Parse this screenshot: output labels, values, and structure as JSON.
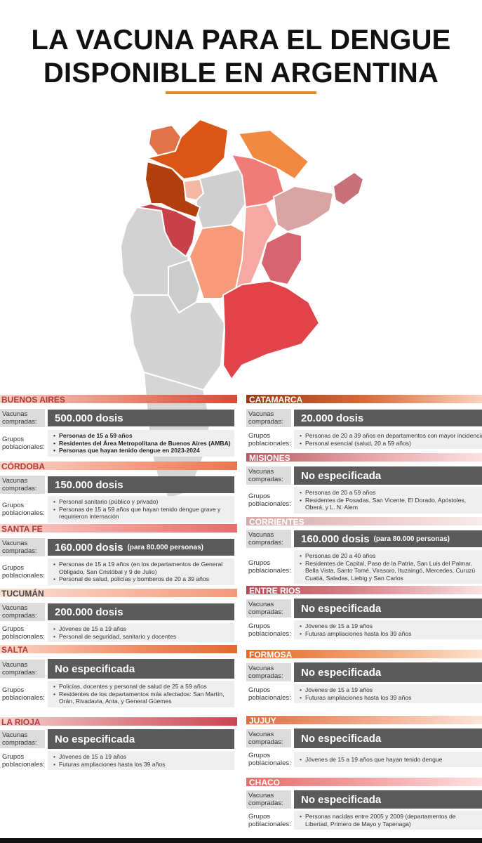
{
  "header": {
    "title_line1": "LA VACUNA PARA EL DENGUE",
    "title_line2": "DISPONIBLE EN ARGENTINA"
  },
  "labels": {
    "vacunas": "Vacunas compradas:",
    "grupos": "Grupos poblacionales:"
  },
  "colors": {
    "accent_orange": "#e08a24",
    "province_red": "#b43a33",
    "value_box": "#5a5a5a"
  },
  "left": [
    {
      "name": "BUENOS AIRES",
      "value": "500.000 dosis",
      "note": "",
      "groups": [
        "Personas de 15 a 59 años",
        "Residentes del Área Metropolitana de Buenos Aires (AMBA)",
        "Personas que hayan tenido dengue en 2023-2024"
      ],
      "bold": true
    },
    {
      "name": "CÓRDOBA",
      "value": "150.000 dosis",
      "note": "",
      "groups": [
        "Personal sanitario (público y privado)",
        "Personas de 15 a 59 años que hayan tenido dengue grave y requirieron internación"
      ],
      "bold": false
    },
    {
      "name": "SANTA FE",
      "value": "160.000 dosis",
      "note": "(para 80.000 personas)",
      "groups": [
        "Personas de 15 a 19 años (en los departamentos de General Obligado, San Cristóbal y 9 de Julio)",
        "Personal de salud, policías y bomberos de 20 a 39 años"
      ],
      "bold": false
    },
    {
      "name": "TUCUMÁN",
      "value": "200.000 dosis",
      "note": "",
      "groups": [
        "Jóvenes de 15 a 19 años",
        "Personal de seguridad, sanitario y docentes"
      ],
      "bold": false
    },
    {
      "name": "SALTA",
      "value": "No especificada",
      "note": "",
      "groups": [
        "Policías, docentes y personal de salud de 25 a 59 años",
        "Residentes de los departamentos más afectados: San Martín, Orán, Rivadavia, Anta, y General Güemes"
      ],
      "bold": false
    },
    {
      "name": "LA RIOJA",
      "value": "No especificada",
      "note": "",
      "groups": [
        "Jóvenes de 15 a 19 años",
        "Futuras ampliaciones hasta los 39 años"
      ],
      "bold": false
    }
  ],
  "right": [
    {
      "name": "CATAMARCA",
      "value": "20.000 dosis",
      "note": "",
      "groups": [
        "Personas de 20 a 39 años en departamentos con mayor incidencia",
        "Personal esencial (salud, 20 a 59 años)"
      ]
    },
    {
      "name": "MISIONES",
      "value": "No especificada",
      "note": "",
      "groups": [
        "Personas de 20 a 59 años",
        "Residentes de Posadas, San Vicente, El Dorado, Apóstoles, Oberá, y L. N. Alem"
      ]
    },
    {
      "name": "CORRIENTES",
      "value": "160.000 dosis",
      "note": "(para 80.000 personas)",
      "groups": [
        "Personas de 20 a 40 años",
        "Residentes de Capital, Paso de la Patria, San Luis del Palmar, Bella Vista, Santo Tomé, Virasoro, Ituzaingó, Mercedes, Curuzú Cuatiá, Saladas, Liebig y San Carlos"
      ]
    },
    {
      "name": "ENTRE RIOS",
      "value": "No especificada",
      "note": "",
      "groups": [
        "Jóvenes de 15 a 19 años",
        "Futuras ampliaciones hasta los 39 años"
      ]
    },
    {
      "name": "FORMOSA",
      "value": "No especificada",
      "note": "",
      "groups": [
        "Jóvenes de 15 a 19 años",
        "Futuras ampliaciones hasta los 39 años"
      ]
    },
    {
      "name": "JUJUY",
      "value": "No especificada",
      "note": "",
      "groups": [
        "Jóvenes de 15 a 19 años que hayan tenido dengue"
      ]
    },
    {
      "name": "CHACO",
      "value": "No especificada",
      "note": "",
      "groups": [
        "Personas nacidas entre 2005 y 2009 (departamentos de Libertad, Primero de Mayo y Tapenaga)"
      ]
    }
  ]
}
